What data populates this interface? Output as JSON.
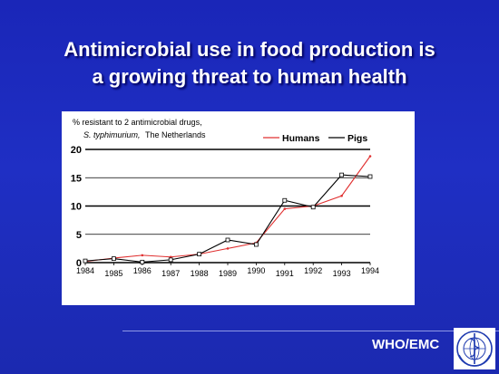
{
  "slide": {
    "title_line1": "Antimicrobial use in food production is",
    "title_line2": "a growing threat to human health",
    "footer": "WHO/EMC"
  },
  "chart_data": {
    "type": "line",
    "subtitle_line1": "% resistant to 2 antimicrobial drugs,",
    "subtitle_line2_italic": "S. typhimurium,",
    "subtitle_line2_rest": "The Netherlands",
    "x": [
      1984,
      1985,
      1986,
      1987,
      1988,
      1989,
      1990,
      1991,
      1992,
      1993,
      1994
    ],
    "x_tick_labels": [
      "1984",
      "1985",
      "1986",
      "1987",
      "1988",
      "1989",
      "1990",
      "1991",
      "1992",
      "1993",
      "1994"
    ],
    "y_ticks": [
      0,
      5,
      10,
      15,
      20
    ],
    "ylim": [
      0,
      20
    ],
    "grid": "horizontal",
    "legend_position": "top-right",
    "series": [
      {
        "name": "Humans",
        "color": "#e03030",
        "values": [
          0.2,
          0.8,
          1.3,
          1.0,
          1.5,
          2.5,
          3.5,
          9.5,
          10.0,
          11.8,
          18.8
        ]
      },
      {
        "name": "Pigs",
        "color": "#000000",
        "values": [
          0.3,
          0.7,
          0.1,
          0.5,
          1.5,
          4.0,
          3.2,
          11.0,
          9.8,
          15.5,
          15.2
        ]
      }
    ]
  },
  "colors": {
    "background": "#1f2fc4",
    "title": "#ffffff"
  },
  "icons": {
    "logo": "who-emblem-icon"
  }
}
